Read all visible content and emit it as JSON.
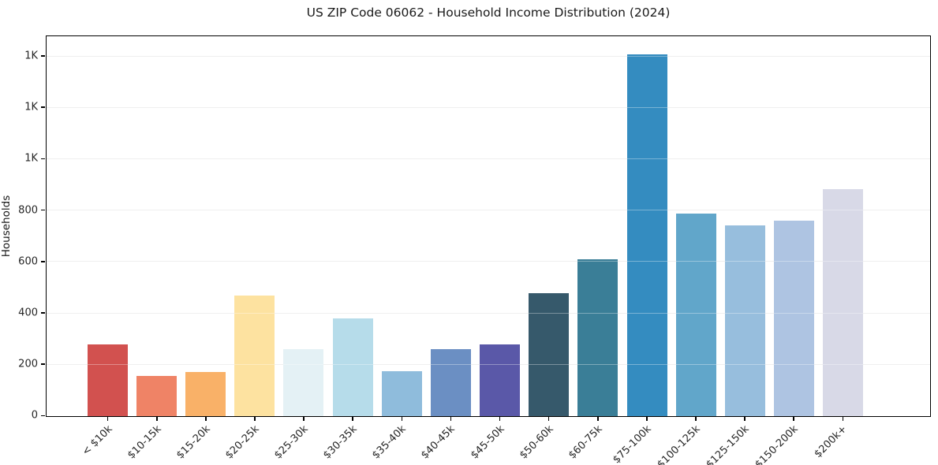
{
  "chart_data": {
    "type": "bar",
    "title": "US ZIP Code 06062 - Household Income Distribution (2024)",
    "xlabel": "",
    "ylabel": "Households",
    "ylim": [
      0,
      1475
    ],
    "grid": "horizontal, light gray, drawn over bars",
    "legend": "none",
    "background_color": "#ffffff",
    "spine_color": "#000000",
    "categories": [
      "< $10k",
      "$10-15k",
      "$15-20k",
      "$20-25k",
      "$25-30k",
      "$30-35k",
      "$35-40k",
      "$40-45k",
      "$45-50k",
      "$50-60k",
      "$60-75k",
      "$75-100k",
      "$100-125k",
      "$125-150k",
      "$150-200k",
      "$200k+"
    ],
    "values": [
      280,
      155,
      172,
      468,
      260,
      380,
      175,
      260,
      277,
      476,
      610,
      1405,
      785,
      740,
      760,
      882
    ],
    "bar_colors": [
      "#d2514f",
      "#ef8366",
      "#f9b168",
      "#fde2a0",
      "#e4f1f5",
      "#b6dcea",
      "#8fbcdc",
      "#6b8fc3",
      "#5a58a8",
      "#36596b",
      "#3a7e97",
      "#348cc0",
      "#61a6ca",
      "#97bedd",
      "#aec4e2",
      "#d8d9e7"
    ],
    "y_ticks": [
      {
        "value": 0,
        "label": "0"
      },
      {
        "value": 200,
        "label": "200"
      },
      {
        "value": 400,
        "label": "400"
      },
      {
        "value": 600,
        "label": "600"
      },
      {
        "value": 800,
        "label": "800"
      },
      {
        "value": 1000,
        "label": "1K"
      },
      {
        "value": 1200,
        "label": "1K"
      },
      {
        "value": 1400,
        "label": "1K"
      }
    ]
  }
}
